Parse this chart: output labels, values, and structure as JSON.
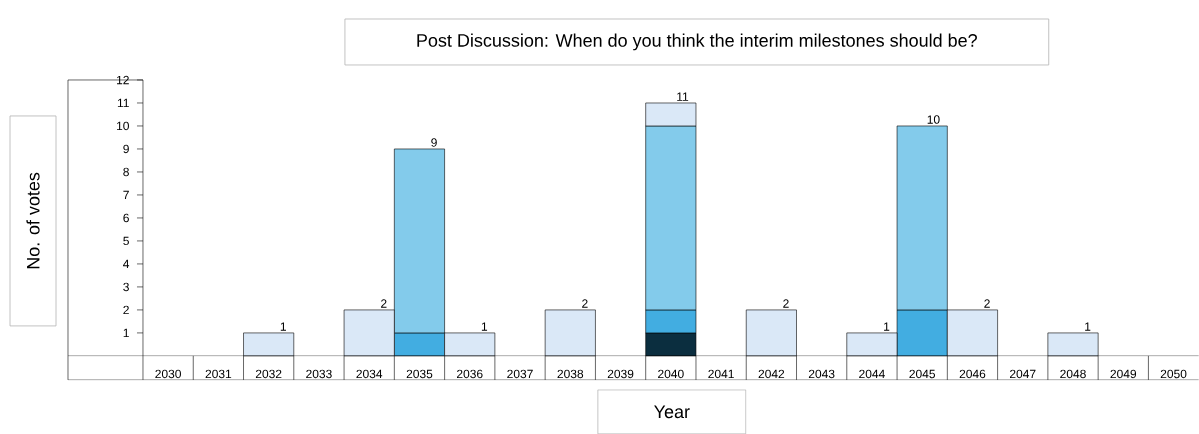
{
  "chart_data": {
    "type": "bar",
    "title": "Post Discussion: When do you think the interim milestones should be?",
    "xlabel": "Year",
    "ylabel": "No. of votes",
    "categories": [
      "2030",
      "2031",
      "2032",
      "2033",
      "2034",
      "2035",
      "2036",
      "2037",
      "2038",
      "2039",
      "2040",
      "2041",
      "2042",
      "2043",
      "2044",
      "2045",
      "2046",
      "2047",
      "2048",
      "2049",
      "2050"
    ],
    "stacked": true,
    "series": [
      {
        "color": "#0b2e3f",
        "values": [
          0,
          0,
          0,
          0,
          0,
          0,
          0,
          0,
          0,
          0,
          1,
          0,
          0,
          0,
          0,
          0,
          0,
          0,
          0,
          0,
          0
        ]
      },
      {
        "color": "#42ade1",
        "values": [
          0,
          0,
          0,
          0,
          0,
          1,
          0,
          0,
          0,
          0,
          1,
          0,
          0,
          0,
          0,
          2,
          0,
          0,
          0,
          0,
          0
        ]
      },
      {
        "color": "#83cbeb",
        "values": [
          0,
          0,
          0,
          0,
          0,
          8,
          0,
          0,
          0,
          0,
          8,
          0,
          0,
          0,
          0,
          8,
          0,
          0,
          0,
          0,
          0
        ]
      },
      {
        "color": "#dae8f7",
        "values": [
          0,
          0,
          1,
          0,
          2,
          0,
          1,
          0,
          2,
          0,
          1,
          0,
          2,
          0,
          1,
          0,
          2,
          0,
          1,
          0,
          0
        ]
      }
    ],
    "totals": [
      null,
      null,
      "1",
      null,
      "2",
      "9",
      "1",
      null,
      "2",
      null,
      "11",
      null,
      "2",
      null,
      "1",
      "10",
      "2",
      null,
      "1",
      null,
      null
    ],
    "ylim": [
      0,
      12
    ],
    "yticks": [
      1,
      2,
      3,
      4,
      5,
      6,
      7,
      8,
      9,
      10,
      11,
      12
    ]
  }
}
